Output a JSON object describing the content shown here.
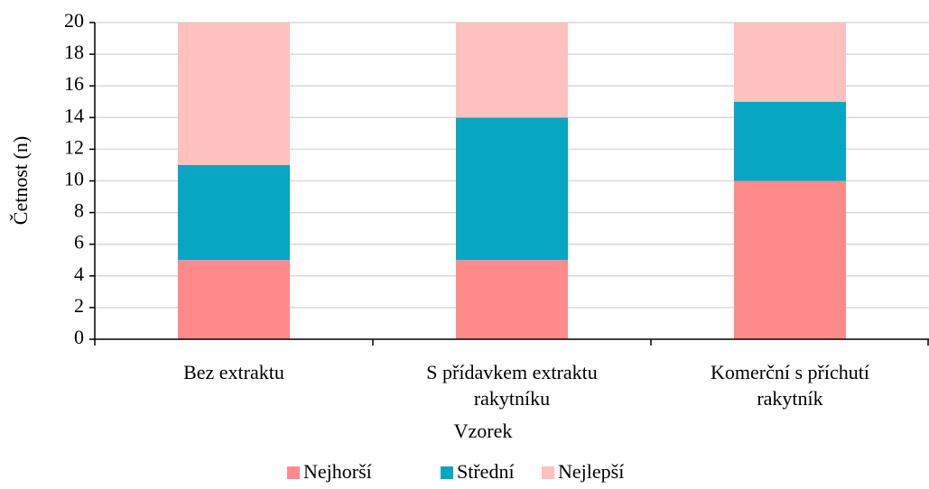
{
  "chart_data": {
    "type": "stacked_bar",
    "x_label": "Vzorek",
    "y_label": "Četnost (n)",
    "categories": [
      "Bez extraktu",
      "S přídavkem extraktu rakytníku",
      "Komerční s příchutí rakytník"
    ],
    "series": [
      {
        "name": "Nejhorší",
        "color": "#ff8a8a",
        "values": [
          5,
          5,
          10
        ]
      },
      {
        "name": "Střední",
        "color": "#07a6c3",
        "values": [
          6,
          9,
          5
        ]
      },
      {
        "name": "Nejlepší",
        "color": "#ffc0c0",
        "values": [
          9,
          6,
          5
        ]
      }
    ],
    "ylim": [
      0,
      20
    ],
    "yticks": [
      0,
      2,
      4,
      6,
      8,
      10,
      12,
      14,
      16,
      18,
      20
    ],
    "grid": true,
    "legend": "bottom"
  }
}
